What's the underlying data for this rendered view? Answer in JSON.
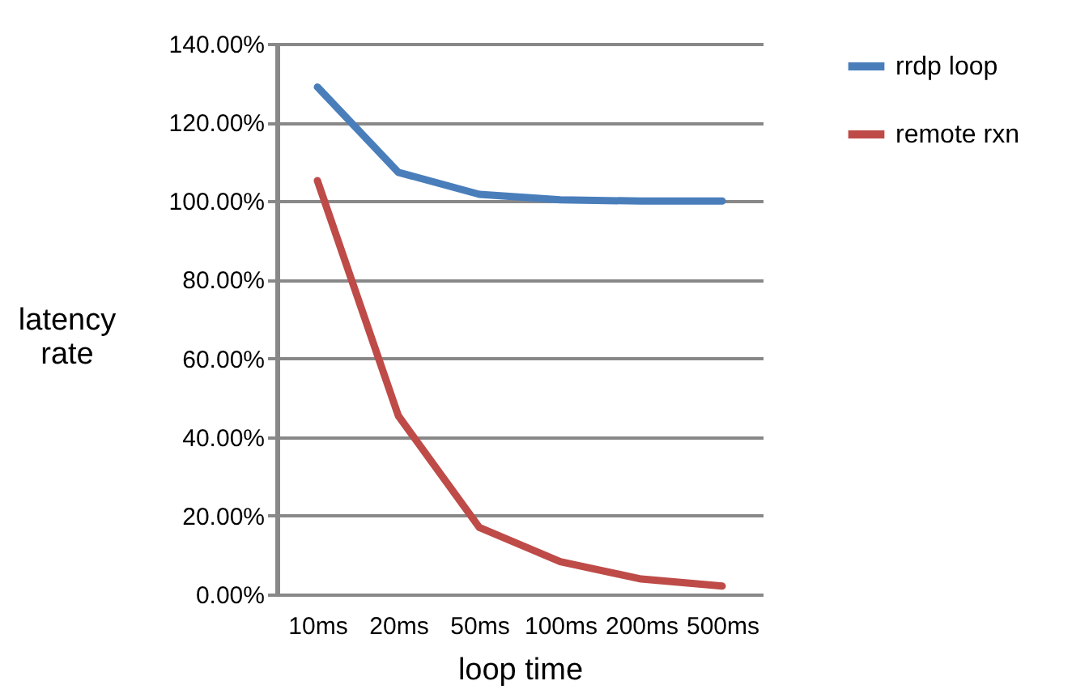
{
  "chart_data": {
    "type": "line",
    "xlabel": "loop time",
    "ylabel": "latency rate",
    "categories": [
      "10ms",
      "20ms",
      "50ms",
      "100ms",
      "200ms",
      "500ms"
    ],
    "series": [
      {
        "name": "rrdp loop",
        "color": "#4a7ebb",
        "values": [
          129,
          107.3,
          101.7,
          100.3,
          100,
          100
        ]
      },
      {
        "name": "remote rxn",
        "color": "#be4b48",
        "values": [
          105.2,
          45.4,
          17,
          8.3,
          3.9,
          2.1
        ]
      }
    ],
    "ylim": [
      0,
      140
    ],
    "yticks": [
      {
        "value": 0,
        "label": "0.00%"
      },
      {
        "value": 20,
        "label": "20.00%"
      },
      {
        "value": 40,
        "label": "40.00%"
      },
      {
        "value": 60,
        "label": "60.00%"
      },
      {
        "value": 80,
        "label": "80.00%"
      },
      {
        "value": 100,
        "label": "100.00%"
      },
      {
        "value": 120,
        "label": "120.00%"
      },
      {
        "value": 140,
        "label": "140.00%"
      }
    ],
    "grid": "y",
    "legend": "right",
    "marker": "none",
    "line_style": "solid"
  }
}
